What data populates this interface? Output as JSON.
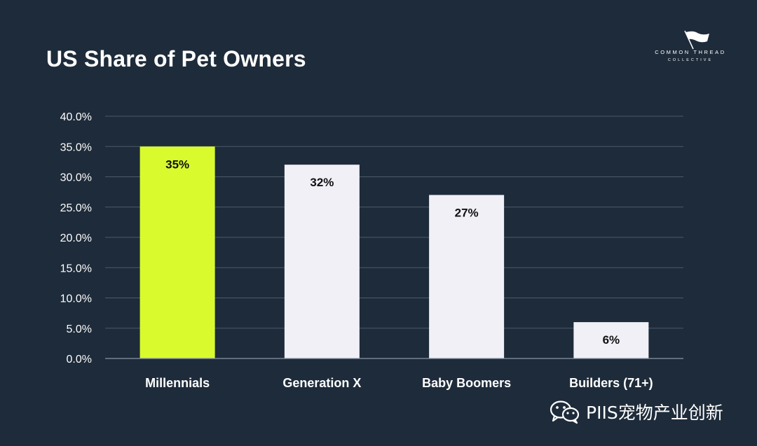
{
  "title": "US Share of Pet Owners",
  "logo": {
    "line1": "COMMON THREAD",
    "line2": "COLLECTIVE"
  },
  "watermark": {
    "text": "PIIS宠物产业创新",
    "icon": "wechat-icon"
  },
  "colors": {
    "background": "#1e2b3a",
    "highlight_bar": "#d9fb2e",
    "bar": "#f1f0f7",
    "grid": "#4a5a6a",
    "text": "#ffffff"
  },
  "chart_data": {
    "type": "bar",
    "title": "US Share of Pet Owners",
    "categories": [
      "Millennials",
      "Generation X",
      "Baby Boomers",
      "Builders (71+)"
    ],
    "values": [
      35,
      32,
      27,
      6
    ],
    "data_labels": [
      "35%",
      "32%",
      "27%",
      "6%"
    ],
    "ylim": [
      0,
      40
    ],
    "y_ticks": [
      "0.0%",
      "5.0%",
      "10.0%",
      "15.0%",
      "20.0%",
      "25.0%",
      "30.0%",
      "35.0%",
      "40.0%"
    ],
    "grid": true,
    "highlight_index": 0,
    "legend": "none"
  }
}
